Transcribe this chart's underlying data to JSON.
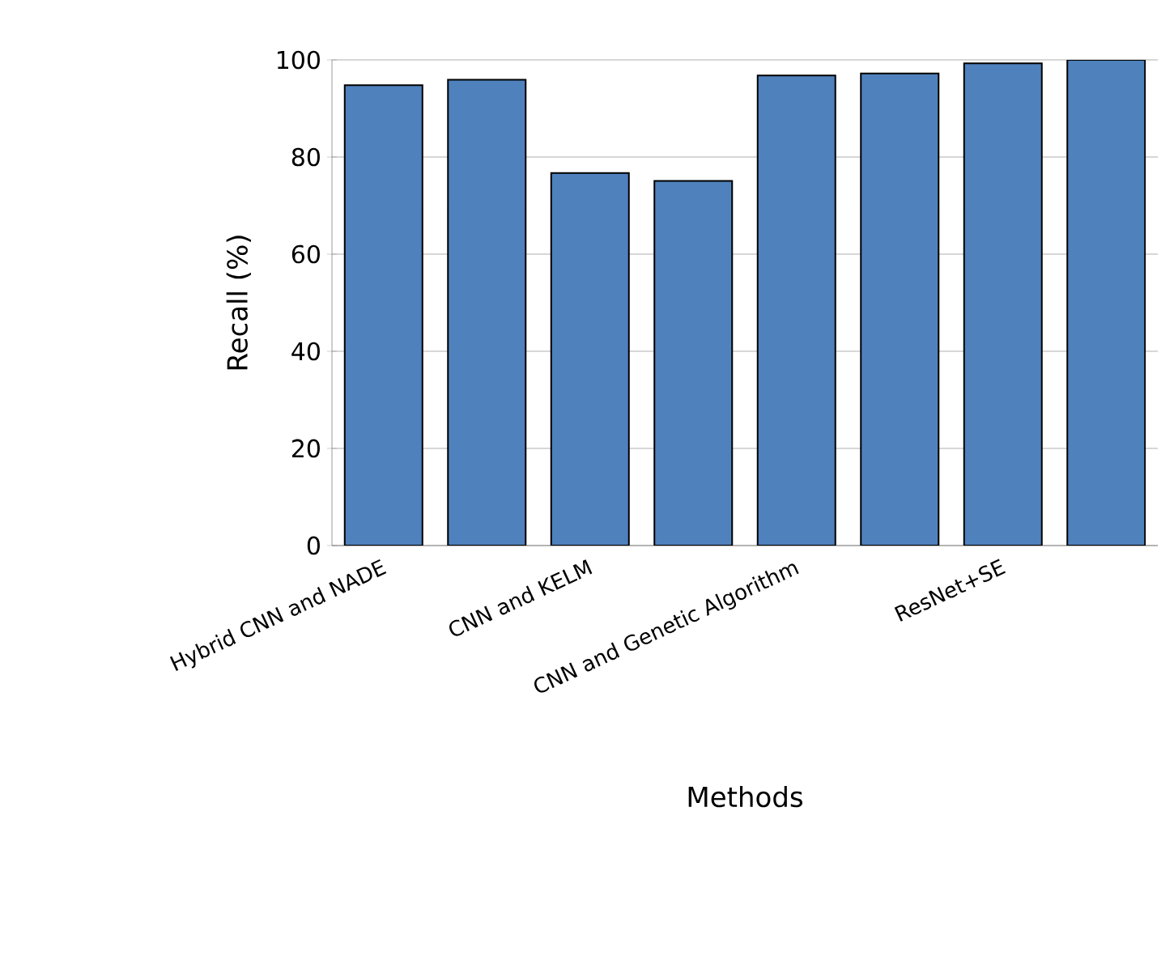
{
  "chart_data": {
    "type": "bar",
    "xlabel": "Methods",
    "ylabel": "Recall (%)",
    "categories": [
      "Hybrid CNN and NADE",
      null,
      "CNN and KELM",
      null,
      "CNN and Genetic Algorithm",
      null,
      "ResNet+SE",
      null
    ],
    "values": [
      94.8,
      95.9,
      76.7,
      75.1,
      96.8,
      97.2,
      99.3,
      100
    ],
    "color": "#4f81bd",
    "ylim": [
      0,
      100
    ],
    "yticks": [
      0,
      20,
      40,
      60,
      80,
      100
    ],
    "grid": "y"
  }
}
